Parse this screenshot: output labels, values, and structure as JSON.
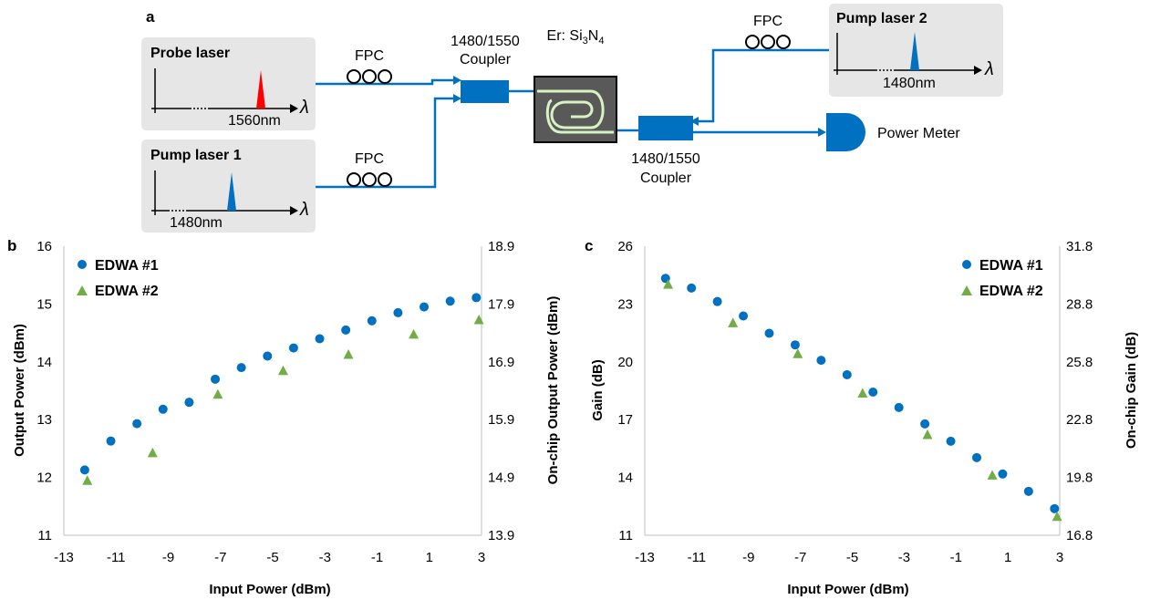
{
  "panel_labels": {
    "a": "a",
    "b": "b",
    "c": "c"
  },
  "schematic": {
    "probe_laser": {
      "title": "Probe laser",
      "wavelength": "1560nm",
      "peak_color": "#ff0000"
    },
    "pump_laser_1": {
      "title": "Pump laser 1",
      "wavelength": "1480nm",
      "peak_color": "#0070c0"
    },
    "pump_laser_2": {
      "title": "Pump laser 2",
      "wavelength": "1480nm",
      "peak_color": "#0070c0"
    },
    "lambda": "λ",
    "fpc": "FPC",
    "coupler_1": {
      "line1": "1480/1550",
      "line2": "Coupler"
    },
    "coupler_2": {
      "line1": "1480/1550",
      "line2": "Coupler"
    },
    "chip": {
      "prefix": "Er: Si",
      "sub1": "3",
      "mid": "N",
      "sub2": "4"
    },
    "power_meter": "Power Meter",
    "colors": {
      "fiber": "#0070c0",
      "box_bg": "#e7e6e6",
      "chip_bg": "#595959",
      "waveguide": "#d9f2c4"
    }
  },
  "chart_data": [
    {
      "type": "scatter",
      "xlabel": "Input Power (dBm)",
      "ylabel": "Output Power (dBm)",
      "y2label": "On-chip Output Power (dBm)",
      "xlim": [
        -13,
        3
      ],
      "ylim": [
        11,
        16
      ],
      "y2lim": [
        13.9,
        18.9
      ],
      "xticks": [
        "-13",
        "-11",
        "-9",
        "-7",
        "-5",
        "-3",
        "-1",
        "1",
        "3"
      ],
      "yticks": [
        "11",
        "12",
        "13",
        "14",
        "15",
        "16"
      ],
      "y2ticks": [
        "13.9",
        "14.9",
        "15.9",
        "16.9",
        "17.9",
        "18.9"
      ],
      "legend_position": "top-left",
      "series": [
        {
          "name": "EDWA #1",
          "marker": "circle",
          "color": "#0070c0",
          "x": [
            -12.2,
            -11.2,
            -10.2,
            -9.2,
            -8.2,
            -7.2,
            -6.2,
            -5.2,
            -4.2,
            -3.2,
            -2.2,
            -1.2,
            -0.2,
            0.8,
            1.8,
            2.8
          ],
          "y": [
            12.13,
            12.63,
            12.93,
            13.18,
            13.3,
            13.7,
            13.9,
            14.1,
            14.24,
            14.4,
            14.55,
            14.71,
            14.85,
            14.95,
            15.05,
            15.11
          ]
        },
        {
          "name": "EDWA #2",
          "marker": "triangle",
          "color": "#70ad47",
          "x": [
            -12.1,
            -9.6,
            -7.1,
            -4.6,
            -2.1,
            0.4,
            2.9
          ],
          "y": [
            11.95,
            12.43,
            13.44,
            13.85,
            14.13,
            14.48,
            14.73
          ]
        }
      ]
    },
    {
      "type": "scatter",
      "xlabel": "Input Power (dBm)",
      "ylabel": "Gain (dB)",
      "y2label": "On-chip Gain (dB)",
      "xlim": [
        -13,
        3
      ],
      "ylim": [
        11,
        26
      ],
      "y2lim": [
        16.8,
        31.8
      ],
      "xticks": [
        "-13",
        "-11",
        "-9",
        "-7",
        "-5",
        "-3",
        "-1",
        "1",
        "3"
      ],
      "yticks": [
        "11",
        "14",
        "17",
        "20",
        "23",
        "26"
      ],
      "y2ticks": [
        "16.8",
        "19.8",
        "22.8",
        "25.8",
        "28.8",
        "31.8"
      ],
      "legend_position": "top-right",
      "series": [
        {
          "name": "EDWA #1",
          "marker": "circle",
          "color": "#0070c0",
          "x": [
            -12.2,
            -11.2,
            -10.2,
            -9.2,
            -8.2,
            -7.2,
            -6.2,
            -5.2,
            -4.2,
            -3.2,
            -2.2,
            -1.2,
            -0.2,
            0.8,
            1.8,
            2.8
          ],
          "y": [
            24.33,
            23.83,
            23.13,
            22.38,
            21.48,
            20.88,
            20.08,
            19.33,
            18.43,
            17.63,
            16.78,
            15.88,
            15.03,
            14.18,
            13.28,
            12.38
          ]
        },
        {
          "name": "EDWA #2",
          "marker": "triangle",
          "color": "#70ad47",
          "x": [
            -12.1,
            -9.6,
            -7.1,
            -4.6,
            -2.1,
            0.4,
            2.9
          ],
          "y": [
            24.03,
            22.03,
            20.43,
            18.38,
            16.23,
            14.13,
            11.98
          ]
        }
      ]
    }
  ]
}
